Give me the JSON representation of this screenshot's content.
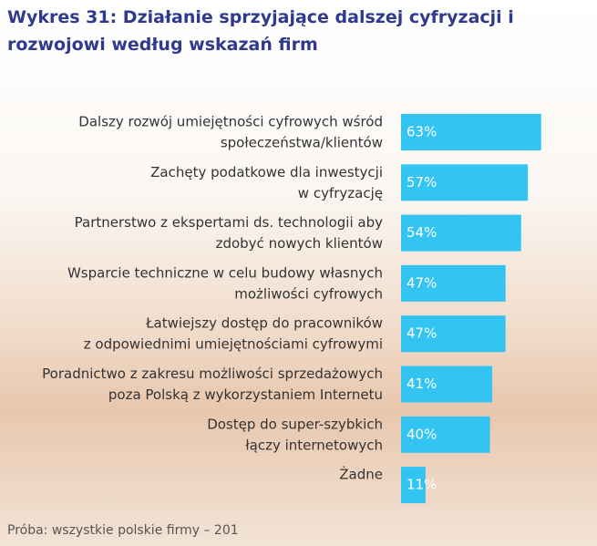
{
  "chart_data": {
    "type": "barh",
    "title": "Wykres 31: Działanie sprzyjające dalszej cyfryzacji i rozwojowi według wskazań firm",
    "categories": [
      [
        "Dalszy rozwój umiejętności cyfrowych wśród",
        "społeczeństwa/klientów"
      ],
      [
        "Zachęty podatkowe dla inwestycji",
        "w cyfryzację"
      ],
      [
        "Partnerstwo z ekspertami ds. technologii aby",
        "zdobyć nowych klientów"
      ],
      [
        "Wsparcie techniczne w celu budowy własnych",
        "możliwości cyfrowych"
      ],
      [
        "Łatwiejszy dostęp do pracowników",
        "z odpowiednimi umiejętnościami cyfrowymi"
      ],
      [
        "Poradnictwo z zakresu możliwości sprzedażowych",
        "poza Polską z wykorzystaniem Internetu"
      ],
      [
        "Dostęp do super-szybkich",
        "łączy internetowych"
      ],
      [
        "Żadne"
      ]
    ],
    "values": [
      63,
      57,
      54,
      47,
      47,
      41,
      40,
      11
    ],
    "value_labels": [
      "63%",
      "57%",
      "54%",
      "47%",
      "47%",
      "41%",
      "40%",
      "11%"
    ],
    "color": "#33c4f2",
    "note": "Próba: wszystkie polskie firmy – 201"
  }
}
